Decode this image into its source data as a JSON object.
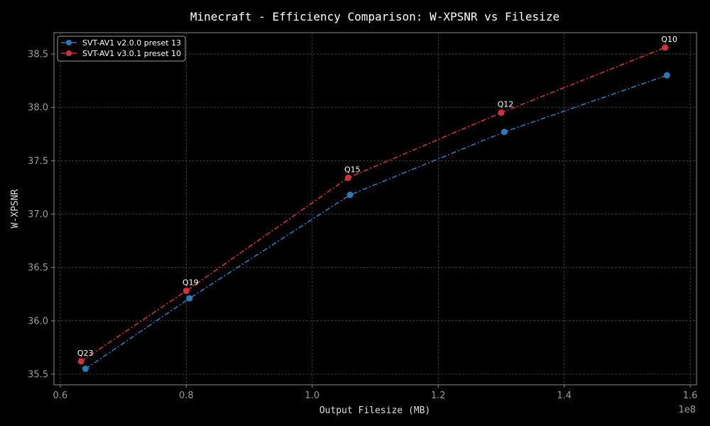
{
  "chart_data": {
    "type": "line",
    "title": "Minecraft - Efficiency Comparison: W-XPSNR vs Filesize",
    "xlabel": "Output Filesize (MB)",
    "ylabel": "W-XPSNR",
    "x_scale_note": "1e8",
    "xlim": [
      0.59,
      1.61
    ],
    "ylim": [
      35.4,
      38.7
    ],
    "xticks": [
      0.6,
      0.8,
      1.0,
      1.2,
      1.4,
      1.6
    ],
    "xtick_labels": [
      "0.6",
      "0.8",
      "1.0",
      "1.2",
      "1.4",
      "1.6"
    ],
    "yticks": [
      35.5,
      36.0,
      36.5,
      37.0,
      37.5,
      38.0,
      38.5
    ],
    "ytick_labels": [
      "35.5",
      "36.0",
      "36.5",
      "37.0",
      "37.5",
      "38.0",
      "38.5"
    ],
    "grid": true,
    "legend_position": "top-left",
    "series": [
      {
        "name": "SVT-AV1 v2.0.0 preset 13",
        "color": "#2a7ab8",
        "x": [
          0.64,
          0.805,
          1.06,
          1.305,
          1.563
        ],
        "y": [
          35.55,
          36.21,
          37.18,
          37.77,
          38.3
        ]
      },
      {
        "name": "SVT-AV1 v3.0.1 preset 10",
        "color": "#d1313a",
        "x": [
          0.633,
          0.8,
          1.057,
          1.3,
          1.56
        ],
        "y": [
          35.62,
          36.28,
          37.34,
          37.95,
          38.56
        ]
      }
    ],
    "annotations": [
      {
        "text": "Q23",
        "x": 0.633,
        "y": 35.62
      },
      {
        "text": "Q19",
        "x": 0.8,
        "y": 36.28
      },
      {
        "text": "Q15",
        "x": 1.057,
        "y": 37.34
      },
      {
        "text": "Q12",
        "x": 1.3,
        "y": 37.95
      },
      {
        "text": "Q10",
        "x": 1.56,
        "y": 38.56
      }
    ]
  }
}
